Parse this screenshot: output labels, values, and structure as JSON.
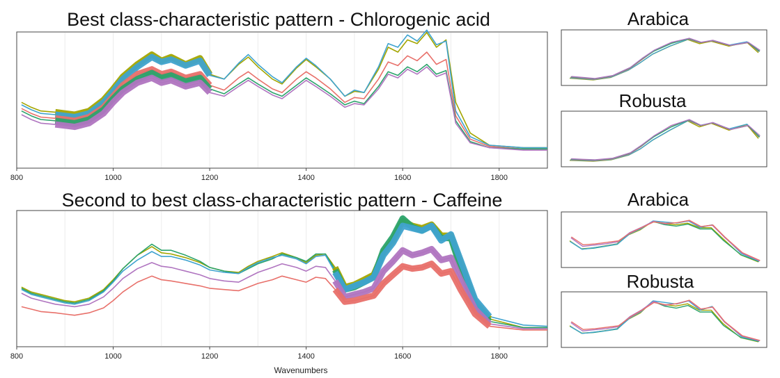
{
  "panels": {
    "top_title": "Best class-characteristic pattern - Chlorogenic acid",
    "bottom_title": "Second to best class-characteristic pattern - Caffeine",
    "x_label": "Wavenumbers",
    "inset_labels": [
      "Arabica",
      "Robusta",
      "Arabica",
      "Robusta"
    ]
  },
  "colors": {
    "olive": "#A3A500",
    "green": "#2BA36B",
    "blue": "#3FA3CF",
    "red": "#E8706A",
    "purple": "#B075C0",
    "grid": "#ececec",
    "frame": "#444444"
  },
  "chart_data": [
    {
      "type": "line",
      "title": "Best class-characteristic pattern - Chlorogenic acid",
      "xlabel": "",
      "ylabel": "",
      "xlim": [
        800,
        1900
      ],
      "ylim": [
        0,
        1
      ],
      "x_ticks": [
        800,
        1000,
        1200,
        1400,
        1600,
        1800
      ],
      "highlight_range": [
        880,
        1215
      ],
      "x": [
        810,
        830,
        850,
        880,
        900,
        920,
        950,
        980,
        1000,
        1020,
        1050,
        1080,
        1100,
        1120,
        1150,
        1180,
        1200,
        1230,
        1260,
        1280,
        1300,
        1330,
        1350,
        1380,
        1400,
        1420,
        1450,
        1480,
        1500,
        1520,
        1550,
        1570,
        1590,
        1610,
        1630,
        1650,
        1670,
        1690,
        1710,
        1740,
        1780,
        1850,
        1900
      ],
      "series": [
        {
          "color": "#A3A500",
          "values": [
            0.47,
            0.43,
            0.4,
            0.39,
            0.38,
            0.37,
            0.4,
            0.49,
            0.58,
            0.68,
            0.78,
            0.86,
            0.81,
            0.84,
            0.78,
            0.83,
            0.7,
            0.66,
            0.78,
            0.84,
            0.76,
            0.66,
            0.62,
            0.75,
            0.82,
            0.76,
            0.66,
            0.52,
            0.56,
            0.55,
            0.74,
            0.92,
            0.88,
            0.98,
            0.95,
            1.04,
            0.92,
            0.98,
            0.47,
            0.22,
            0.12,
            0.1,
            0.1
          ]
        },
        {
          "color": "#3FA3CF",
          "values": [
            0.45,
            0.41,
            0.38,
            0.37,
            0.36,
            0.35,
            0.38,
            0.47,
            0.56,
            0.66,
            0.76,
            0.84,
            0.8,
            0.82,
            0.77,
            0.81,
            0.69,
            0.66,
            0.79,
            0.86,
            0.78,
            0.68,
            0.63,
            0.76,
            0.83,
            0.77,
            0.66,
            0.52,
            0.57,
            0.55,
            0.76,
            0.95,
            0.92,
            1.02,
            0.97,
            1.06,
            0.94,
            0.97,
            0.4,
            0.19,
            0.12,
            0.1,
            0.1
          ]
        },
        {
          "color": "#E8706A",
          "values": [
            0.42,
            0.38,
            0.35,
            0.34,
            0.33,
            0.32,
            0.35,
            0.43,
            0.52,
            0.61,
            0.7,
            0.74,
            0.7,
            0.72,
            0.67,
            0.7,
            0.61,
            0.57,
            0.67,
            0.72,
            0.66,
            0.58,
            0.55,
            0.66,
            0.72,
            0.67,
            0.58,
            0.47,
            0.51,
            0.5,
            0.66,
            0.8,
            0.77,
            0.85,
            0.81,
            0.88,
            0.78,
            0.82,
            0.36,
            0.17,
            0.11,
            0.09,
            0.09
          ]
        },
        {
          "color": "#2BA36B",
          "values": [
            0.4,
            0.36,
            0.33,
            0.32,
            0.31,
            0.3,
            0.33,
            0.41,
            0.5,
            0.58,
            0.66,
            0.71,
            0.67,
            0.69,
            0.64,
            0.67,
            0.58,
            0.54,
            0.62,
            0.67,
            0.62,
            0.55,
            0.52,
            0.61,
            0.67,
            0.62,
            0.54,
            0.45,
            0.48,
            0.46,
            0.6,
            0.72,
            0.69,
            0.76,
            0.72,
            0.78,
            0.7,
            0.73,
            0.32,
            0.15,
            0.1,
            0.09,
            0.09
          ]
        },
        {
          "color": "#B075C0",
          "values": [
            0.37,
            0.33,
            0.3,
            0.29,
            0.28,
            0.27,
            0.3,
            0.38,
            0.47,
            0.55,
            0.63,
            0.67,
            0.63,
            0.65,
            0.6,
            0.63,
            0.55,
            0.52,
            0.6,
            0.65,
            0.6,
            0.53,
            0.5,
            0.59,
            0.65,
            0.6,
            0.52,
            0.43,
            0.46,
            0.45,
            0.58,
            0.7,
            0.67,
            0.74,
            0.7,
            0.76,
            0.68,
            0.71,
            0.3,
            0.14,
            0.1,
            0.08,
            0.08
          ]
        }
      ]
    },
    {
      "type": "line",
      "title": "Second to best class-characteristic pattern - Caffeine",
      "xlabel": "Wavenumbers",
      "ylabel": "",
      "xlim": [
        800,
        1900
      ],
      "ylim": [
        0,
        1
      ],
      "x_ticks": [
        800,
        1000,
        1200,
        1400,
        1600,
        1800
      ],
      "highlight_range": [
        1450,
        1790
      ],
      "x": [
        810,
        830,
        850,
        880,
        900,
        920,
        950,
        980,
        1000,
        1020,
        1050,
        1080,
        1100,
        1120,
        1150,
        1180,
        1200,
        1230,
        1260,
        1280,
        1300,
        1330,
        1350,
        1380,
        1400,
        1420,
        1440,
        1460,
        1480,
        1500,
        1520,
        1540,
        1560,
        1580,
        1600,
        1620,
        1640,
        1660,
        1680,
        1700,
        1720,
        1750,
        1780,
        1850,
        1900
      ],
      "series": [
        {
          "color": "#A3A500",
          "values": [
            0.42,
            0.38,
            0.36,
            0.33,
            0.31,
            0.3,
            0.33,
            0.4,
            0.48,
            0.57,
            0.68,
            0.75,
            0.7,
            0.69,
            0.66,
            0.62,
            0.58,
            0.55,
            0.54,
            0.59,
            0.63,
            0.67,
            0.7,
            0.66,
            0.62,
            0.68,
            0.69,
            0.58,
            0.42,
            0.44,
            0.48,
            0.52,
            0.7,
            0.8,
            0.96,
            0.92,
            0.9,
            0.93,
            0.84,
            0.84,
            0.62,
            0.3,
            0.16,
            0.09,
            0.09
          ]
        },
        {
          "color": "#2BA36B",
          "values": [
            0.41,
            0.37,
            0.35,
            0.32,
            0.3,
            0.29,
            0.32,
            0.39,
            0.47,
            0.57,
            0.68,
            0.77,
            0.72,
            0.72,
            0.68,
            0.63,
            0.58,
            0.55,
            0.53,
            0.57,
            0.61,
            0.65,
            0.69,
            0.66,
            0.63,
            0.69,
            0.69,
            0.56,
            0.4,
            0.42,
            0.46,
            0.5,
            0.72,
            0.83,
            0.98,
            0.91,
            0.88,
            0.92,
            0.82,
            0.82,
            0.58,
            0.28,
            0.14,
            0.09,
            0.09
          ]
        },
        {
          "color": "#3FA3CF",
          "values": [
            0.4,
            0.36,
            0.34,
            0.31,
            0.29,
            0.28,
            0.31,
            0.38,
            0.46,
            0.55,
            0.64,
            0.71,
            0.67,
            0.67,
            0.64,
            0.6,
            0.56,
            0.54,
            0.53,
            0.58,
            0.62,
            0.66,
            0.68,
            0.65,
            0.61,
            0.67,
            0.68,
            0.54,
            0.4,
            0.43,
            0.46,
            0.5,
            0.68,
            0.78,
            0.92,
            0.9,
            0.88,
            0.92,
            0.8,
            0.85,
            0.64,
            0.32,
            0.18,
            0.11,
            0.1
          ]
        },
        {
          "color": "#B075C0",
          "values": [
            0.37,
            0.33,
            0.31,
            0.28,
            0.27,
            0.26,
            0.28,
            0.34,
            0.41,
            0.49,
            0.57,
            0.62,
            0.59,
            0.58,
            0.55,
            0.52,
            0.49,
            0.47,
            0.46,
            0.5,
            0.54,
            0.58,
            0.61,
            0.58,
            0.55,
            0.59,
            0.58,
            0.47,
            0.34,
            0.36,
            0.38,
            0.41,
            0.55,
            0.63,
            0.72,
            0.68,
            0.7,
            0.73,
            0.64,
            0.66,
            0.48,
            0.24,
            0.12,
            0.08,
            0.08
          ]
        },
        {
          "color": "#E8706A",
          "values": [
            0.26,
            0.24,
            0.22,
            0.21,
            0.2,
            0.19,
            0.21,
            0.25,
            0.31,
            0.38,
            0.46,
            0.51,
            0.48,
            0.47,
            0.45,
            0.43,
            0.41,
            0.4,
            0.39,
            0.42,
            0.45,
            0.48,
            0.51,
            0.48,
            0.46,
            0.5,
            0.49,
            0.4,
            0.3,
            0.31,
            0.33,
            0.35,
            0.45,
            0.52,
            0.59,
            0.57,
            0.58,
            0.61,
            0.53,
            0.55,
            0.4,
            0.2,
            0.1,
            0.07,
            0.07
          ]
        }
      ]
    }
  ]
}
